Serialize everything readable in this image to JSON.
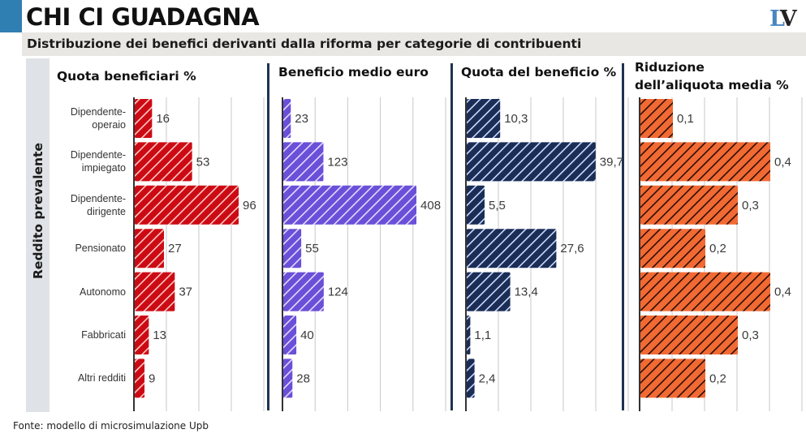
{
  "header": {
    "title": "CHI CI GUADAGNA",
    "subtitle": "Distribuzione dei benefici derivanti dalla riforma per categorie di contribuenti",
    "logo_left": "L",
    "logo_right": "V"
  },
  "side_label": "Reddito prevalente",
  "footer": "Fonte: modello di microsimulazione Upb",
  "colors": {
    "quota_beneficiari": "#cc0a14",
    "beneficio_medio": "#6a4fd8",
    "quota_beneficio": "#1b2d55",
    "riduzione_aliquota": "#f26a33",
    "divider": "#1f3350",
    "accent": "#2f7fb3"
  },
  "chart_data": [
    {
      "type": "bar",
      "orientation": "horizontal",
      "title": "Quota beneficiari %",
      "categories": [
        "Dipendente-operaio",
        "Dipendente-impiegato",
        "Dipendente-dirigente",
        "Pensionato",
        "Autonomo",
        "Fabbricati",
        "Altri redditi"
      ],
      "values": [
        16,
        53,
        96,
        27,
        37,
        13,
        9
      ],
      "labels": [
        "16",
        "53",
        "96",
        "27",
        "37",
        "13",
        "9"
      ],
      "xlim": [
        0,
        120
      ],
      "grid": true,
      "ylabel": "Reddito prevalente"
    },
    {
      "type": "bar",
      "orientation": "horizontal",
      "title": "Beneficio medio euro",
      "categories": [
        "Dipendente-operaio",
        "Dipendente-impiegato",
        "Dipendente-dirigente",
        "Pensionato",
        "Autonomo",
        "Fabbricati",
        "Altri redditi"
      ],
      "values": [
        23,
        123,
        408,
        55,
        124,
        40,
        28
      ],
      "labels": [
        "23",
        "123",
        "408",
        "55",
        "124",
        "40",
        "28"
      ],
      "xlim": [
        0,
        500
      ],
      "grid": true
    },
    {
      "type": "bar",
      "orientation": "horizontal",
      "title": "Quota del beneficio %",
      "categories": [
        "Dipendente-operaio",
        "Dipendente-impiegato",
        "Dipendente-dirigente",
        "Pensionato",
        "Autonomo",
        "Fabbricati",
        "Altri redditi"
      ],
      "values": [
        10.3,
        39.7,
        5.5,
        27.6,
        13.4,
        1.1,
        2.4
      ],
      "labels": [
        "10,3",
        "39,7",
        "5,5",
        "27,6",
        "13,4",
        "1,1",
        "2,4"
      ],
      "xlim": [
        0,
        50
      ],
      "grid": true
    },
    {
      "type": "bar",
      "orientation": "horizontal",
      "title": "Riduzione dell’aliquota media %",
      "title_lines": [
        "Riduzione",
        "dell’aliquota media %"
      ],
      "categories": [
        "Dipendente-operaio",
        "Dipendente-impiegato",
        "Dipendente-dirigente",
        "Pensionato",
        "Autonomo",
        "Fabbricati",
        "Altri redditi"
      ],
      "values": [
        0.1,
        0.4,
        0.3,
        0.2,
        0.4,
        0.3,
        0.2
      ],
      "labels": [
        "0,1",
        "0,4",
        "0,3",
        "0,2",
        "0,4",
        "0,3",
        "0,2"
      ],
      "xlim": [
        0,
        0.5
      ],
      "grid": true
    }
  ],
  "category_label_lines": [
    [
      "Dipendente-",
      "operaio"
    ],
    [
      "Dipendente-",
      "impiegato"
    ],
    [
      "Dipendente-",
      "dirigente"
    ],
    [
      "Pensionato"
    ],
    [
      "Autonomo"
    ],
    [
      "Fabbricati"
    ],
    [
      "Altri redditi"
    ]
  ]
}
